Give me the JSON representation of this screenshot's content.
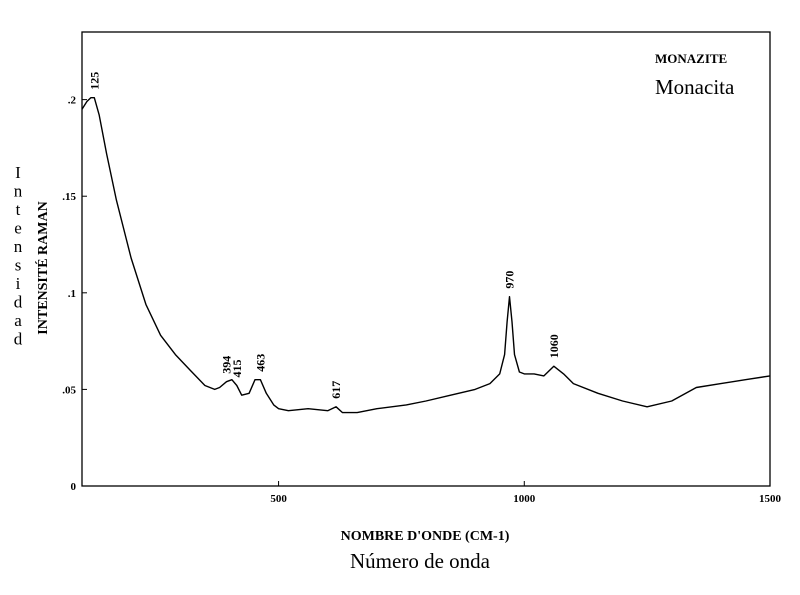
{
  "chart_data": {
    "type": "line",
    "title": "MONAZITE",
    "subtitle": "Monacita",
    "xlabel": "NOMBRE D'ONDE (CM-1)",
    "xlabel_secondary": "Número de onda",
    "ylabel": "INTENSITÉ RAMAN",
    "ylabel_secondary": "Intensidad",
    "xlim": [
      100,
      1500
    ],
    "ylim": [
      0,
      0.235
    ],
    "x_ticks": [
      500,
      1000,
      1500
    ],
    "x_tick_labels": [
      "500",
      "1000",
      "1500"
    ],
    "y_ticks": [
      0,
      0.05,
      0.1,
      0.15,
      0.2
    ],
    "y_tick_labels": [
      "0",
      ".05",
      ".1",
      ".15",
      ".2"
    ],
    "grid": false,
    "line_color": "#000000",
    "series": [
      {
        "x": [
          100,
          110,
          118,
          125,
          135,
          150,
          170,
          200,
          230,
          260,
          290,
          320,
          350,
          370,
          380,
          394,
          405,
          415,
          425,
          440,
          452,
          463,
          475,
          490,
          500,
          520,
          560,
          600,
          617,
          630,
          660,
          700,
          760,
          800,
          850,
          900,
          930,
          950,
          960,
          965,
          970,
          975,
          980,
          990,
          1000,
          1020,
          1040,
          1060,
          1080,
          1100,
          1150,
          1200,
          1250,
          1300,
          1350,
          1400,
          1450,
          1500
        ],
        "y": [
          0.195,
          0.199,
          0.201,
          0.201,
          0.192,
          0.172,
          0.148,
          0.118,
          0.094,
          0.078,
          0.068,
          0.06,
          0.052,
          0.05,
          0.051,
          0.054,
          0.055,
          0.052,
          0.047,
          0.048,
          0.055,
          0.055,
          0.048,
          0.042,
          0.04,
          0.039,
          0.04,
          0.039,
          0.041,
          0.038,
          0.038,
          0.04,
          0.042,
          0.044,
          0.047,
          0.05,
          0.053,
          0.058,
          0.068,
          0.085,
          0.098,
          0.085,
          0.068,
          0.059,
          0.058,
          0.058,
          0.057,
          0.062,
          0.058,
          0.053,
          0.048,
          0.044,
          0.041,
          0.044,
          0.051,
          0.053,
          0.055,
          0.057
        ]
      }
    ],
    "annotations": [
      {
        "text": "125",
        "x": 125,
        "y": 0.201
      },
      {
        "text": "394",
        "x": 394,
        "y": 0.054
      },
      {
        "text": "415",
        "x": 415,
        "y": 0.052
      },
      {
        "text": "463",
        "x": 463,
        "y": 0.055
      },
      {
        "text": "617",
        "x": 617,
        "y": 0.041
      },
      {
        "text": "970",
        "x": 970,
        "y": 0.098
      },
      {
        "text": "1060",
        "x": 1060,
        "y": 0.062
      }
    ]
  }
}
